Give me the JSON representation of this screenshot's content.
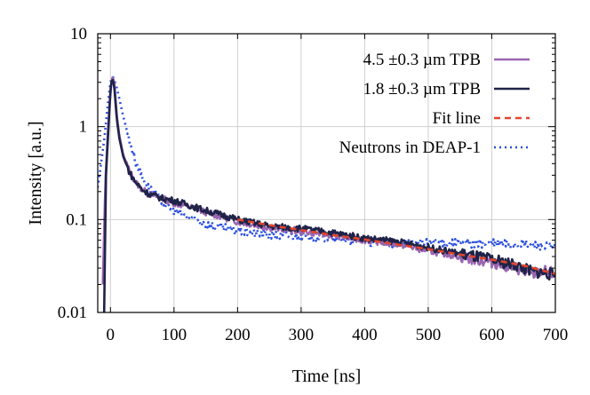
{
  "chart_data": {
    "type": "line",
    "title": "",
    "xlabel": "Time [ns]",
    "ylabel": "Intensity [a.u.]",
    "xlim": [
      -20,
      700
    ],
    "ylim": [
      0.01,
      10
    ],
    "yscale": "log",
    "grid": true,
    "legend_position": "top-right",
    "xticks": [
      0,
      100,
      200,
      300,
      400,
      500,
      600,
      700
    ],
    "xtick_labels": [
      "0",
      "100",
      "200",
      "300",
      "400",
      "500",
      "600",
      "700"
    ],
    "yticks": [
      0.01,
      0.1,
      1,
      10
    ],
    "ytick_labels": [
      "0.01",
      "0.1",
      "1",
      "10"
    ],
    "series": [
      {
        "name": "4.5 ±0.3 µm TPB",
        "color": "#9a66b0",
        "style": "solid",
        "x": [
          -12,
          -8,
          -4,
          0,
          2,
          4,
          6,
          8,
          10,
          14,
          20,
          30,
          40,
          50,
          60,
          80,
          100,
          120,
          150,
          180,
          200,
          250,
          300,
          350,
          400,
          450,
          500,
          550,
          600,
          640,
          660,
          680,
          700
        ],
        "y": [
          0.02,
          0.25,
          0.9,
          2.3,
          3.3,
          3.4,
          2.9,
          2.0,
          1.3,
          0.8,
          0.5,
          0.33,
          0.25,
          0.21,
          0.19,
          0.17,
          0.15,
          0.14,
          0.12,
          0.105,
          0.095,
          0.082,
          0.075,
          0.068,
          0.06,
          0.055,
          0.046,
          0.04,
          0.035,
          0.03,
          0.025,
          0.028,
          0.026
        ]
      },
      {
        "name": "1.8 ±0.3 µm TPB",
        "color": "#1f2348",
        "style": "solid",
        "x": [
          -10,
          -7,
          -3,
          0,
          2,
          4,
          6,
          8,
          10,
          14,
          20,
          30,
          40,
          50,
          60,
          80,
          100,
          120,
          150,
          180,
          200,
          250,
          300,
          350,
          400,
          450,
          500,
          550,
          600,
          640,
          660,
          680,
          700
        ],
        "y": [
          0.009,
          0.3,
          1.0,
          2.5,
          3.1,
          3.2,
          2.7,
          1.8,
          1.2,
          0.75,
          0.48,
          0.32,
          0.25,
          0.21,
          0.19,
          0.17,
          0.16,
          0.145,
          0.125,
          0.11,
          0.1,
          0.085,
          0.08,
          0.072,
          0.063,
          0.058,
          0.05,
          0.043,
          0.037,
          0.032,
          0.028,
          0.027,
          0.025
        ]
      },
      {
        "name": "Fit line",
        "color": "#e4452d",
        "style": "dashed",
        "x": [
          200,
          250,
          300,
          350,
          400,
          450,
          500,
          550,
          600,
          650,
          700
        ],
        "y": [
          0.1,
          0.087,
          0.077,
          0.068,
          0.061,
          0.054,
          0.048,
          0.042,
          0.037,
          0.032,
          0.026
        ]
      },
      {
        "name": "Neutrons in DEAP-1",
        "color": "#2a4ee0",
        "style": "dotted",
        "x": [
          -20,
          -10,
          -4,
          0,
          3,
          6,
          10,
          14,
          20,
          30,
          40,
          50,
          60,
          80,
          100,
          120,
          150,
          180,
          200,
          250,
          300,
          350,
          400,
          450,
          500,
          550,
          600,
          650,
          700
        ],
        "y": [
          0.22,
          0.7,
          1.8,
          3.0,
          3.5,
          3.2,
          2.6,
          2.0,
          1.3,
          0.7,
          0.42,
          0.29,
          0.22,
          0.16,
          0.125,
          0.105,
          0.09,
          0.08,
          0.075,
          0.068,
          0.066,
          0.062,
          0.058,
          0.056,
          0.056,
          0.056,
          0.055,
          0.055,
          0.05
        ]
      }
    ]
  }
}
